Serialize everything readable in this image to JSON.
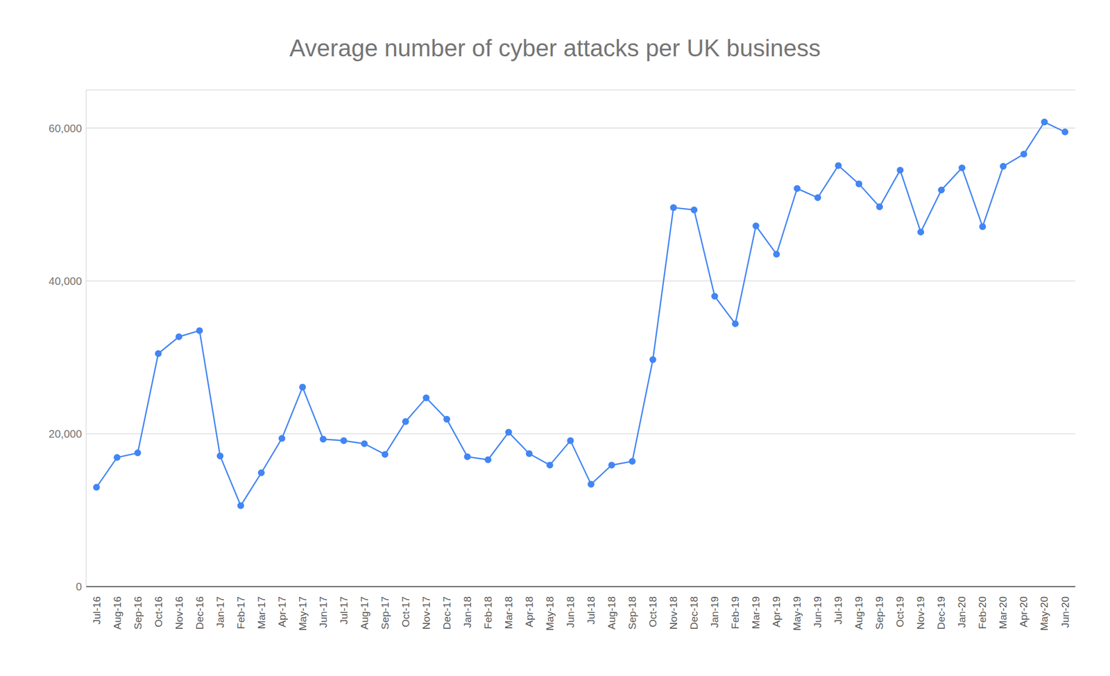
{
  "chart_data": {
    "type": "line",
    "title": "Average number of cyber attacks per UK business",
    "categories": [
      "Jul-16",
      "Aug-16",
      "Sep-16",
      "Oct-16",
      "Nov-16",
      "Dec-16",
      "Jan-17",
      "Feb-17",
      "Mar-17",
      "Apr-17",
      "May-17",
      "Jun-17",
      "Jul-17",
      "Aug-17",
      "Sep-17",
      "Oct-17",
      "Nov-17",
      "Dec-17",
      "Jan-18",
      "Feb-18",
      "Mar-18",
      "Apr-18",
      "May-18",
      "Jun-18",
      "Jul-18",
      "Aug-18",
      "Sep-18",
      "Oct-18",
      "Nov-18",
      "Dec-18",
      "Jan-19",
      "Feb-19",
      "Mar-19",
      "Apr-19",
      "May-19",
      "Jun-19",
      "Jul-19",
      "Aug-19",
      "Sep-19",
      "Oct-19",
      "Nov-19",
      "Dec-19",
      "Jan-20",
      "Feb-20",
      "Mar-20",
      "Apr-20",
      "May-20",
      "Jun-20"
    ],
    "values": [
      13000,
      16900,
      17500,
      30500,
      32700,
      33500,
      17100,
      10600,
      14900,
      19400,
      26100,
      19300,
      19100,
      18700,
      17300,
      21600,
      24700,
      21900,
      17000,
      16600,
      20200,
      17400,
      15900,
      19100,
      13400,
      15900,
      16400,
      29700,
      49600,
      49300,
      38000,
      34400,
      47200,
      43500,
      52100,
      50900,
      55100,
      52700,
      49700,
      54500,
      46400,
      51900,
      54800,
      47100,
      55000,
      56600,
      60800,
      59500
    ],
    "color": "#4285f4",
    "marker": "circle",
    "ylim": [
      0,
      65000
    ],
    "yticks": [
      0,
      {
        "value": 20000,
        "label": "20,000"
      },
      {
        "value": 40000,
        "label": "40,000"
      },
      {
        "value": 60000,
        "label": "60,000"
      }
    ],
    "grid": true
  }
}
